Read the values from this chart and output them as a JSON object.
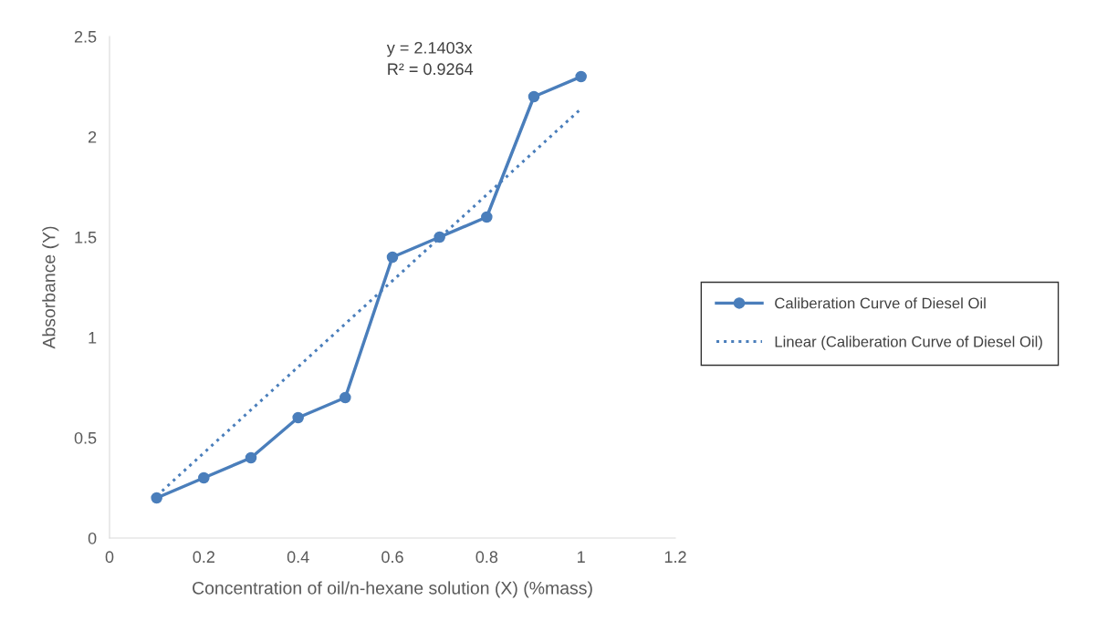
{
  "chart_data": {
    "type": "line",
    "xlabel": "Concentration of oil/n-hexane solution (X) (%mass)",
    "ylabel": "Absorbance (Y)",
    "xlim": [
      0,
      1.2
    ],
    "xticks": [
      0,
      0.2,
      0.4,
      0.6,
      0.8,
      1,
      1.2
    ],
    "ylim": [
      0,
      2.5
    ],
    "yticks": [
      0,
      0.5,
      1,
      1.5,
      2,
      2.5
    ],
    "grid": false,
    "legend": "right",
    "series": [
      {
        "name": "Caliberation Curve of Diesel Oil",
        "color": "#4a7ebb",
        "marker": "circle",
        "line_style": "solid",
        "x": [
          0.1,
          0.2,
          0.3,
          0.4,
          0.5,
          0.6,
          0.7,
          0.8,
          0.9,
          1
        ],
        "values": [
          0.2,
          0.3,
          0.4,
          0.6,
          0.7,
          1.4,
          1.5,
          1.6,
          2.2,
          2.3
        ]
      },
      {
        "name": "Linear (Caliberation Curve of Diesel Oil)",
        "color": "#4a7ebb",
        "marker": "none",
        "line_style": "dotted",
        "x": [
          0.1,
          1
        ],
        "values": [
          0.21,
          2.14
        ]
      }
    ],
    "annotations": [
      "y = 2.1403x\nR² = 0.9264"
    ]
  }
}
